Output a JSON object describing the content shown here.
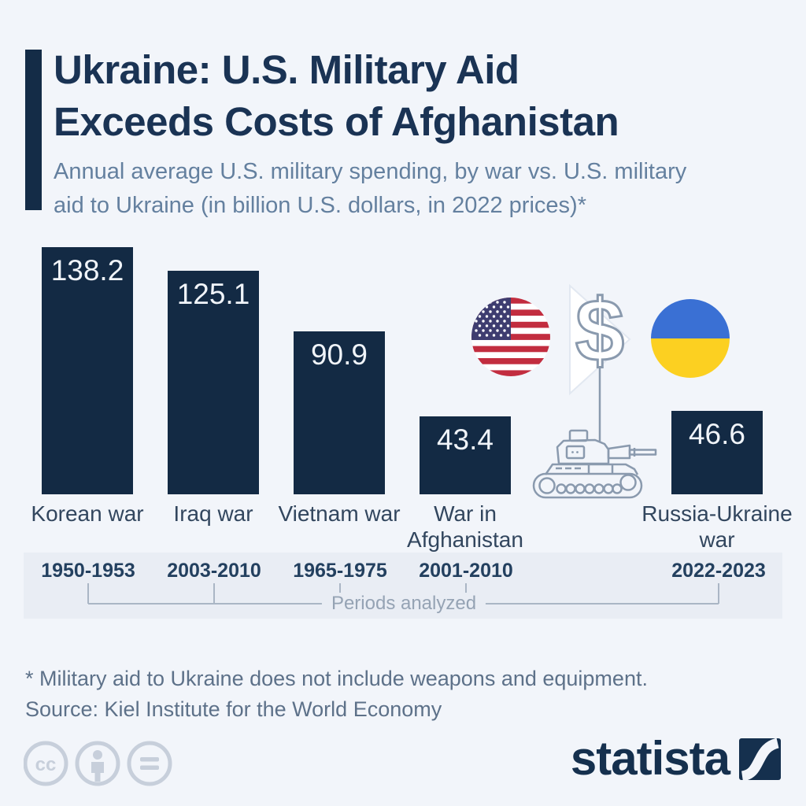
{
  "header": {
    "title_line1": "Ukraine: U.S. Military Aid",
    "title_line2": "Exceeds Costs of Afghanistan",
    "subtitle_line1": "Annual average U.S. military spending, by war vs. U.S. military",
    "subtitle_line2": "aid to Ukraine (in billion U.S. dollars, in 2022 prices)*"
  },
  "chart_data": {
    "type": "bar",
    "title": "Ukraine: U.S. Military Aid Exceeds Costs of Afghanistan",
    "subtitle": "Annual average U.S. military spending, by war vs. U.S. military aid to Ukraine (in billion U.S. dollars, in 2022 prices)*",
    "categories": [
      "Korean war",
      "Iraq war",
      "Vietnam war",
      "War in Afghanistan",
      "Russia-Ukraine war"
    ],
    "values": [
      138.2,
      125.1,
      90.9,
      43.4,
      46.6
    ],
    "periods": [
      "1950-1953",
      "2003-2010",
      "1965-1975",
      "2001-2010",
      "2022-2023"
    ],
    "periods_caption": "Periods analyzed",
    "unit": "billion U.S. dollars, in 2022 prices",
    "ylim": [
      0,
      140
    ],
    "grid": false,
    "legend": "none",
    "bar_color": "#132a44",
    "value_label_color": "#f0f4f9",
    "icons": [
      "us-flag-icon",
      "dollar-pennant-icon",
      "ukraine-flag-icon",
      "tank-icon"
    ]
  },
  "footer": {
    "note": "* Military aid to Ukraine does not include weapons and equipment.",
    "source": "Source: Kiel Institute for the World Economy",
    "license_icons": [
      "cc-icon",
      "attribution-person-icon",
      "equals-icon"
    ],
    "logo_text": "statista"
  }
}
